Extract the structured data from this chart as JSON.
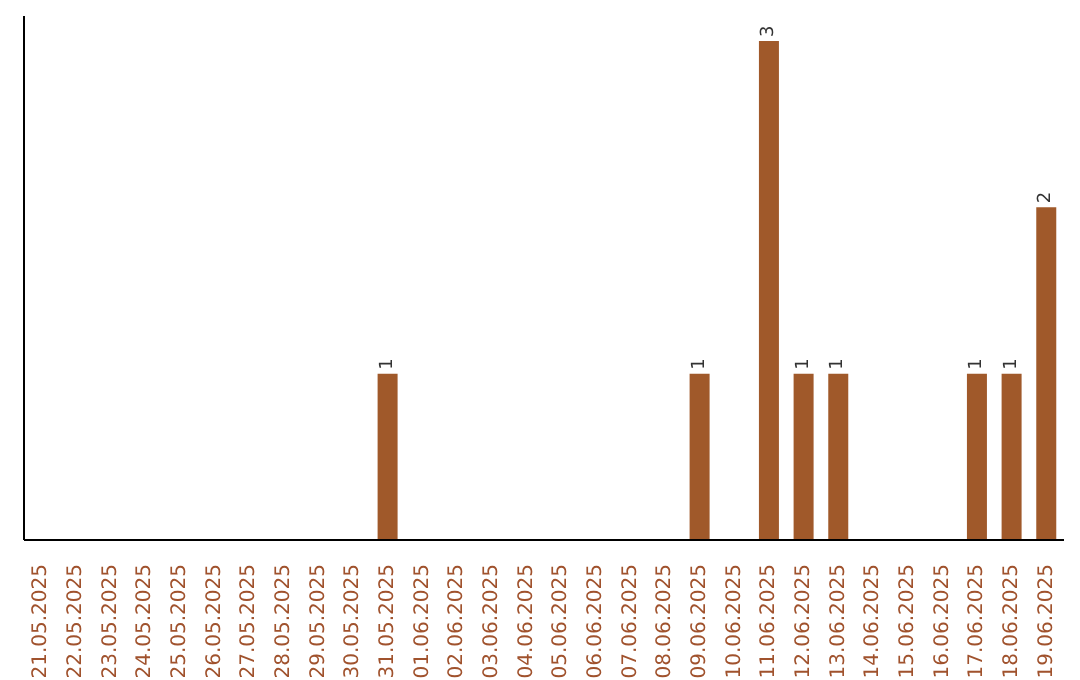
{
  "chart_data": {
    "type": "bar",
    "categories": [
      "21.05.2025",
      "22.05.2025",
      "23.05.2025",
      "24.05.2025",
      "25.05.2025",
      "26.05.2025",
      "27.05.2025",
      "28.05.2025",
      "29.05.2025",
      "30.05.2025",
      "31.05.2025",
      "01.06.2025",
      "02.06.2025",
      "03.06.2025",
      "04.06.2025",
      "05.06.2025",
      "06.06.2025",
      "07.06.2025",
      "08.06.2025",
      "09.06.2025",
      "10.06.2025",
      "11.06.2025",
      "12.06.2025",
      "13.06.2025",
      "14.06.2025",
      "15.06.2025",
      "16.06.2025",
      "17.06.2025",
      "18.06.2025",
      "19.06.2025"
    ],
    "values": [
      0,
      0,
      0,
      0,
      0,
      0,
      0,
      0,
      0,
      0,
      1,
      0,
      0,
      0,
      0,
      0,
      0,
      0,
      0,
      1,
      0,
      3,
      1,
      1,
      0,
      0,
      0,
      1,
      1,
      2
    ],
    "value_labels": [
      null,
      null,
      null,
      null,
      null,
      null,
      null,
      null,
      null,
      null,
      "1",
      null,
      null,
      null,
      null,
      null,
      null,
      null,
      null,
      "1",
      null,
      "3",
      "1",
      "1",
      null,
      null,
      null,
      "1",
      "1",
      "2"
    ],
    "color": "#a0592a"
  }
}
